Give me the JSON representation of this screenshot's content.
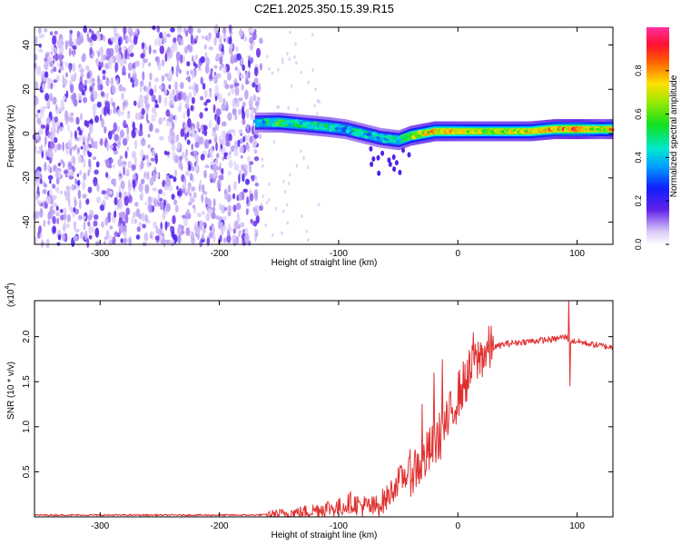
{
  "title": "C2E1.2025.350.15.39.R15",
  "chart_data": [
    {
      "type": "heatmap",
      "xlabel": "Height of straight line (km)",
      "ylabel": "Frequency (Hz)",
      "xlim": [
        -355,
        130
      ],
      "ylim": [
        -50,
        48
      ],
      "xticks": [
        -300,
        -200,
        -100,
        0,
        100
      ],
      "yticks": [
        -40,
        -20,
        0,
        20,
        40
      ],
      "colorbar": {
        "label": "Normalized spectral amplitude",
        "range": [
          0,
          1
        ],
        "ticks": [
          "0.0",
          "0.2",
          "0.4",
          "0.6",
          "0.8"
        ],
        "tick_values": [
          0,
          0.2,
          0.4,
          0.6,
          0.8
        ]
      },
      "ridge": {
        "x": [
          -170,
          -150,
          -130,
          -110,
          -95,
          -80,
          -65,
          -50,
          -40,
          -30,
          -20,
          -10,
          0,
          20,
          40,
          60,
          80,
          100,
          120,
          130
        ],
        "y": [
          5,
          5,
          4,
          3,
          2,
          0,
          -2,
          -3,
          -1,
          0,
          1,
          1,
          1,
          1,
          1,
          1,
          2,
          2,
          2,
          2
        ],
        "amplitude": [
          0.35,
          0.6,
          0.45,
          0.5,
          0.4,
          0.45,
          0.4,
          0.5,
          0.7,
          0.75,
          0.8,
          0.8,
          0.75,
          0.7,
          0.72,
          0.75,
          0.85,
          0.95,
          0.7,
          0.8
        ]
      },
      "noise_region": {
        "x": [
          -355,
          -165
        ],
        "level": 0.15
      }
    },
    {
      "type": "line",
      "xlabel": "Height of straight line (km)",
      "ylabel": "SNR (10 * v/v)",
      "scale_label": "(x10",
      "scale_exp": "4",
      "scale_close": ")",
      "xlim": [
        -355,
        130
      ],
      "ylim": [
        0,
        2.4
      ],
      "xticks": [
        -300,
        -200,
        -100,
        0,
        100
      ],
      "yticks": [
        "0.5",
        "1.0",
        "1.5",
        "2.0"
      ],
      "ytick_values": [
        0.5,
        1.0,
        1.5,
        2.0
      ],
      "color": "#e03030",
      "series": [
        {
          "name": "SNR",
          "x": [
            -355,
            -250,
            -170,
            -150,
            -130,
            -110,
            -100,
            -90,
            -80,
            -70,
            -60,
            -50,
            -40,
            -30,
            -20,
            -10,
            0,
            10,
            20,
            30,
            40,
            60,
            80,
            90,
            95,
            100,
            110,
            120,
            130
          ],
          "y": [
            0.02,
            0.02,
            0.02,
            0.03,
            0.05,
            0.1,
            0.1,
            0.16,
            0.12,
            0.1,
            0.2,
            0.4,
            0.5,
            0.6,
            0.8,
            1.0,
            1.35,
            1.6,
            1.8,
            1.88,
            1.92,
            1.95,
            1.97,
            2.0,
            1.95,
            1.95,
            1.92,
            1.9,
            1.88
          ]
        }
      ],
      "spikes": [
        {
          "x": -40,
          "y": 0.75
        },
        {
          "x": -30,
          "y": 1.25
        },
        {
          "x": -20,
          "y": 1.6
        },
        {
          "x": -13,
          "y": 1.75
        },
        {
          "x": 13,
          "y": 2.05
        },
        {
          "x": 93,
          "y": 2.4
        },
        {
          "x": 94,
          "y": 1.45
        }
      ]
    }
  ]
}
